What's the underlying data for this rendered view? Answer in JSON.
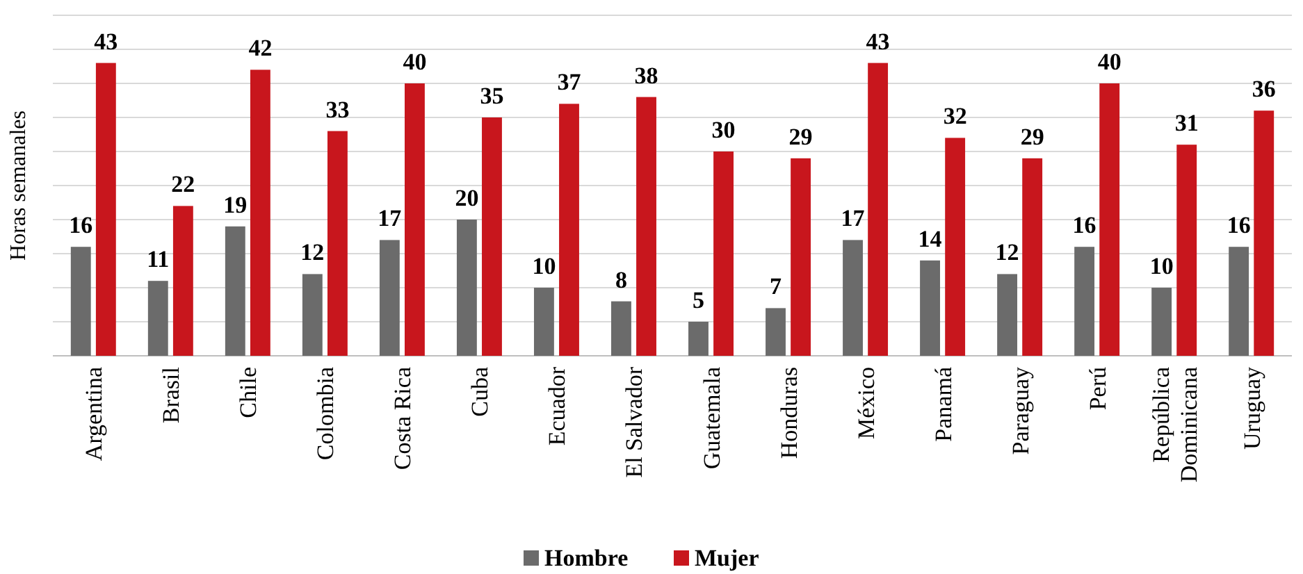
{
  "chart_data": {
    "type": "bar",
    "ylabel": "Horas semanales",
    "categories": [
      "Argentina",
      "Brasil",
      "Chile",
      "Colombia",
      "Costa Rica",
      "Cuba",
      "Ecuador",
      "El Salvador",
      "Guatemala",
      "Honduras",
      "México",
      "Panamá",
      "Paraguay",
      "Perú",
      "República Dominicana",
      "Uruguay"
    ],
    "series": [
      {
        "name": "Hombre",
        "color": "#6b6b6b",
        "values": [
          16,
          11,
          19,
          12,
          17,
          20,
          10,
          8,
          5,
          7,
          17,
          14,
          12,
          16,
          10,
          16
        ]
      },
      {
        "name": "Mujer",
        "color": "#c8161d",
        "values": [
          43,
          22,
          42,
          33,
          40,
          35,
          37,
          38,
          30,
          29,
          43,
          32,
          29,
          40,
          31,
          36
        ]
      }
    ],
    "ylim": [
      0,
      50
    ],
    "yticks": [
      {
        "value": 0,
        "label": null
      },
      {
        "value": 5,
        "label": null
      },
      {
        "value": 10,
        "label": null
      },
      {
        "value": 15,
        "label": null
      },
      {
        "value": 20,
        "label": null
      },
      {
        "value": 25,
        "label": null
      },
      {
        "value": 30,
        "label": null
      },
      {
        "value": 35,
        "label": null
      },
      {
        "value": 40,
        "label": null
      },
      {
        "value": 45,
        "label": null
      },
      {
        "value": 50,
        "label": null
      }
    ],
    "grid": "y",
    "data_labels": true,
    "legend": "bottom"
  }
}
